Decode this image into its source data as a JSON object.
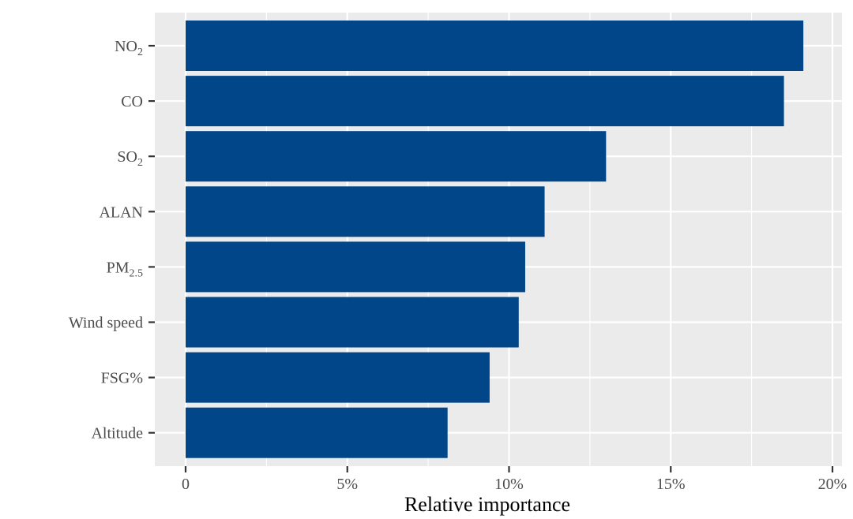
{
  "chart_data": {
    "type": "bar",
    "orientation": "horizontal",
    "categories": [
      {
        "main": "NO",
        "sub": "2"
      },
      {
        "main": "CO",
        "sub": ""
      },
      {
        "main": "SO",
        "sub": "2"
      },
      {
        "main": "ALAN",
        "sub": ""
      },
      {
        "main": "PM",
        "sub": "2.5"
      },
      {
        "main": "Wind speed",
        "sub": ""
      },
      {
        "main": "FSG%",
        "sub": ""
      },
      {
        "main": "Altitude",
        "sub": ""
      }
    ],
    "values": [
      19.1,
      18.5,
      13.0,
      11.1,
      10.5,
      10.3,
      9.4,
      8.1
    ],
    "xlabel": "Relative importance",
    "ylabel": "",
    "title": "",
    "xlim": [
      0,
      20
    ],
    "xticks": [
      0,
      5,
      10,
      15,
      20
    ],
    "xtick_labels": [
      "0",
      "5%",
      "10%",
      "15%",
      "20%"
    ],
    "grid": true,
    "colors": {
      "bar": "#02468a",
      "panel": "#ebebeb",
      "grid": "#ffffff"
    }
  }
}
